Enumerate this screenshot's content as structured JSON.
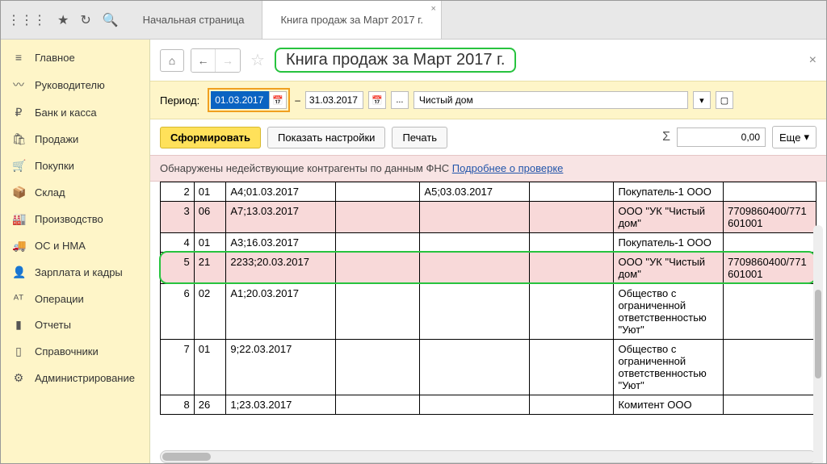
{
  "tabs": {
    "home": "Начальная страница",
    "active": "Книга продаж за Март 2017 г."
  },
  "sidebar": [
    {
      "icon": "≡",
      "label": "Главное"
    },
    {
      "icon": "〰",
      "label": "Руководителю"
    },
    {
      "icon": "₽",
      "label": "Банк и касса"
    },
    {
      "icon": "🛍",
      "label": "Продажи"
    },
    {
      "icon": "🛒",
      "label": "Покупки"
    },
    {
      "icon": "📦",
      "label": "Склад"
    },
    {
      "icon": "🏭",
      "label": "Производство"
    },
    {
      "icon": "🚚",
      "label": "ОС и НМА"
    },
    {
      "icon": "👤",
      "label": "Зарплата и кадры"
    },
    {
      "icon": "ᴬᵀ",
      "label": "Операции"
    },
    {
      "icon": "▮",
      "label": "Отчеты"
    },
    {
      "icon": "▯",
      "label": "Справочники"
    },
    {
      "icon": "⚙",
      "label": "Администрирование"
    }
  ],
  "title": "Книга продаж за Март 2017 г.",
  "period": {
    "label": "Период:",
    "from": "01.03.2017",
    "to": "31.03.2017",
    "org": "Чистый дом"
  },
  "buttons": {
    "form": "Сформировать",
    "settings": "Показать настройки",
    "print": "Печать",
    "more": "Еще",
    "sum": "0,00"
  },
  "warning": {
    "text": "Обнаружены недействующие контрагенты по данным ФНС ",
    "link": "Подробнее о проверке"
  },
  "cols": [
    40,
    38,
    130,
    100,
    130,
    100,
    130,
    110
  ],
  "rows": [
    {
      "pink": false,
      "c": [
        "2",
        "01",
        "А4;01.03.2017",
        "",
        "А5;03.03.2017",
        "",
        "Покупатель-1 ООО",
        ""
      ]
    },
    {
      "pink": true,
      "c": [
        "3",
        "06",
        "А7;13.03.2017",
        "",
        "",
        "",
        "ООО \"УК \"Чистый дом\"",
        "7709860400/771601001"
      ]
    },
    {
      "pink": false,
      "c": [
        "4",
        "01",
        "А3;16.03.2017",
        "",
        "",
        "",
        "Покупатель-1 ООО",
        ""
      ]
    },
    {
      "pink": true,
      "c": [
        "5",
        "21",
        "2233;20.03.2017",
        "",
        "",
        "",
        "ООО \"УК \"Чистый дом\"",
        "7709860400/771601001"
      ],
      "hl": true
    },
    {
      "pink": false,
      "c": [
        "6",
        "02",
        "А1;20.03.2017",
        "",
        "",
        "",
        "Общество с ограниченной ответственностью \"Уют\"",
        ""
      ]
    },
    {
      "pink": false,
      "c": [
        "7",
        "01",
        "9;22.03.2017",
        "",
        "",
        "",
        "Общество с ограниченной ответственностью \"Уют\"",
        ""
      ]
    },
    {
      "pink": false,
      "c": [
        "8",
        "26",
        "1;23.03.2017",
        "",
        "",
        "",
        "Комитент ООО",
        ""
      ]
    }
  ],
  "colors": {
    "accent": "#fef5c8",
    "highlight": "#27c33e",
    "pink": "#f8d9d9",
    "hlborder": "#f0a020"
  }
}
